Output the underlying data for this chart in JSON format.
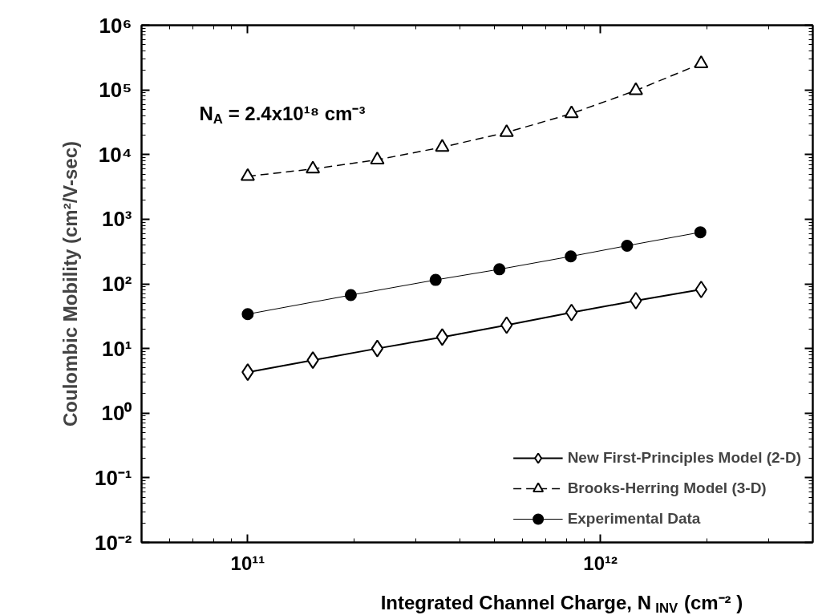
{
  "chart_data": {
    "type": "line",
    "xlabel": "Integrated Channel Charge, N$_{INV}$ (cm⁻² )",
    "ylabel": "Coulombic Mobility (cm²/V-sec)",
    "annotations": [
      "N$_{A}$ = 2.4x10¹⁸ cm⁻³"
    ],
    "log": "xy",
    "grid": false,
    "legend": "bottom right",
    "xlim": [
      50000000000.0,
      4000000000000.0
    ],
    "ylim": [
      0.01,
      1000000
    ],
    "xticks": [
      {
        "value": 100000000000.0,
        "label": "10¹¹"
      },
      {
        "value": 1000000000000.0,
        "label": "10¹²"
      }
    ],
    "yticks": [
      {
        "value": 0.01,
        "label": "10⁻²"
      },
      {
        "value": 0.1,
        "label": "10⁻¹"
      },
      {
        "value": 1,
        "label": "10⁰"
      },
      {
        "value": 10,
        "label": "10¹"
      },
      {
        "value": 100,
        "label": "10²"
      },
      {
        "value": 1000,
        "label": "10³"
      },
      {
        "value": 10000,
        "label": "10⁴"
      },
      {
        "value": 100000,
        "label": "10⁵"
      },
      {
        "value": 1000000,
        "label": "10⁶"
      }
    ],
    "series": [
      {
        "name": "New First-Principles Model (2-D)",
        "color": "#000000",
        "marker": "diamond",
        "line_style": "solid",
        "x": [
          100000000000.0,
          153000000000.0,
          233000000000.0,
          356000000000.0,
          542000000000.0,
          828000000000.0,
          1260000000000.0,
          1930000000000.0
        ],
        "values": [
          4.3,
          6.6,
          10,
          15,
          23,
          36,
          55,
          82
        ]
      },
      {
        "name": "Brooks-Herring Model (3-D)",
        "color": "#000000",
        "marker": "triangle",
        "line_style": "dashed",
        "x": [
          100000000000.0,
          153000000000.0,
          233000000000.0,
          356000000000.0,
          542000000000.0,
          828000000000.0,
          1260000000000.0,
          1930000000000.0
        ],
        "values": [
          4600,
          6000,
          8300,
          13000,
          22000,
          43000,
          98000,
          255000
        ]
      },
      {
        "name": "Experimental Data",
        "color": "#000000",
        "marker": "circle",
        "line_style": "solid",
        "x": [
          100000000000.0,
          196000000000.0,
          341000000000.0,
          517000000000.0,
          824000000000.0,
          1190000000000.0,
          1920000000000.0
        ],
        "values": [
          34,
          67,
          115,
          168,
          266,
          389,
          628
        ]
      }
    ]
  }
}
